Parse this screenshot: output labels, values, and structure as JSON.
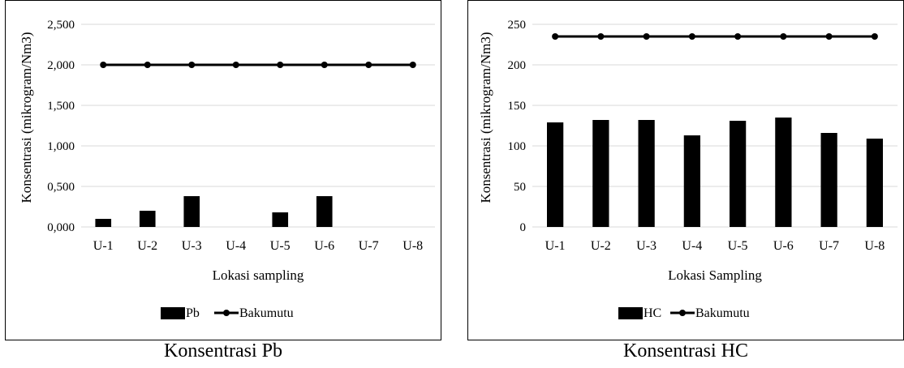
{
  "captions": [
    "Konsentrasi Pb",
    "Konsentrasi HC"
  ],
  "chart_data": [
    {
      "type": "bar",
      "categories": [
        "U-1",
        "U-2",
        "U-3",
        "U-4",
        "U-5",
        "U-6",
        "U-7",
        "U-8"
      ],
      "series": [
        {
          "name": "Pb",
          "kind": "bar",
          "values": [
            0.1,
            0.2,
            0.38,
            0.0,
            0.18,
            0.38,
            0.0,
            0.0
          ]
        },
        {
          "name": "Bakumutu",
          "kind": "line",
          "values": [
            2.0,
            2.0,
            2.0,
            2.0,
            2.0,
            2.0,
            2.0,
            2.0
          ]
        }
      ],
      "xlabel": "Lokasi sampling",
      "ylabel": "Konsentrasi (mikrogram/Nm3)",
      "ylim": [
        0,
        2.5
      ],
      "yticks": [
        "0,000",
        "0,500",
        "1,000",
        "1,500",
        "2,000",
        "2,500"
      ],
      "grid": true,
      "legend": "bottom",
      "colors": {
        "bar": "#000000",
        "line": "#000000",
        "grid": "#d9d9d9",
        "border": "#000000"
      }
    },
    {
      "type": "bar",
      "categories": [
        "U-1",
        "U-2",
        "U-3",
        "U-4",
        "U-5",
        "U-6",
        "U-7",
        "U-8"
      ],
      "series": [
        {
          "name": "HC",
          "kind": "bar",
          "values": [
            129,
            132,
            132,
            113,
            131,
            135,
            116,
            109
          ]
        },
        {
          "name": "Bakumutu",
          "kind": "line",
          "values": [
            235,
            235,
            235,
            235,
            235,
            235,
            235,
            235
          ]
        }
      ],
      "xlabel": "Lokasi Sampling",
      "ylabel": "Konsentrasi (mikrogram/Nm3)",
      "ylim": [
        0,
        250
      ],
      "yticks": [
        "0",
        "50",
        "100",
        "150",
        "200",
        "250"
      ],
      "grid": true,
      "legend": "bottom",
      "colors": {
        "bar": "#000000",
        "line": "#000000",
        "grid": "#d9d9d9",
        "border": "#000000"
      }
    }
  ]
}
